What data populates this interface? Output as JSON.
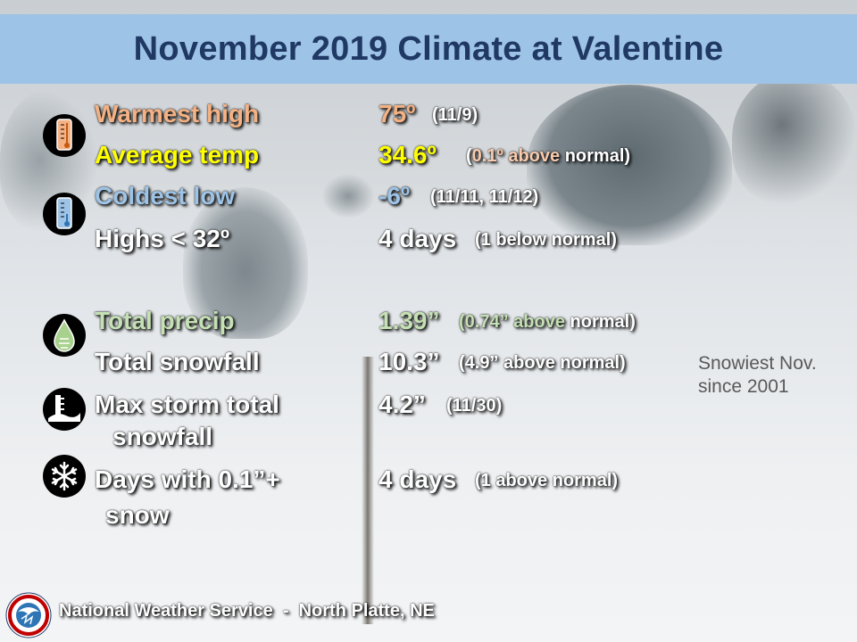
{
  "title": "November 2019 Climate at Valentine",
  "rows": {
    "warmest": {
      "label": "Warmest high",
      "value": "75º",
      "detail": "(11/9)"
    },
    "average": {
      "label": "Average temp",
      "value": "34.6º",
      "detail_open": "(",
      "detail_colored": "0.1º above",
      "detail_rest": "normal)"
    },
    "coldest": {
      "label": "Coldest low",
      "value": "-6º",
      "detail": "(11/11, 11/12)"
    },
    "highs": {
      "label": "Highs < 32º",
      "value": "4 days",
      "detail": "(1 below normal)"
    },
    "precip": {
      "label": "Total precip",
      "value": "1.39”",
      "detail_colored": "(0.74” above",
      "detail_rest": "normal)"
    },
    "snowfall": {
      "label": "Total snowfall",
      "value": "10.3”",
      "detail": "(4.9” above normal)"
    },
    "storm": {
      "label_line1": "Max storm total",
      "label_line2": "snowfall",
      "value": "4.2”",
      "detail": "(11/30)"
    },
    "snowdays": {
      "label_line1": "Days with 0.1”+",
      "label_line2": "snow",
      "value": "4 days",
      "detail": "(1 above normal)"
    }
  },
  "side_note": {
    "line1": "Snowiest Nov.",
    "line2": "since 2001"
  },
  "footer": "National Weather Service  -  North Platte, NE",
  "icons": {
    "warm": "thermometer-warm-icon",
    "cold": "thermometer-cold-icon",
    "precip": "raindrop-icon",
    "snow_depth": "snow-depth-gauge-icon",
    "snowflake": "snowflake-icon",
    "logo": "nws-logo"
  },
  "colors": {
    "title_bar": "#9dc3e6",
    "title_text": "#1f3864",
    "warm": "#f4b183",
    "average": "#ffff00",
    "cold": "#9dc3e6",
    "precip": "#c5e0b4"
  }
}
